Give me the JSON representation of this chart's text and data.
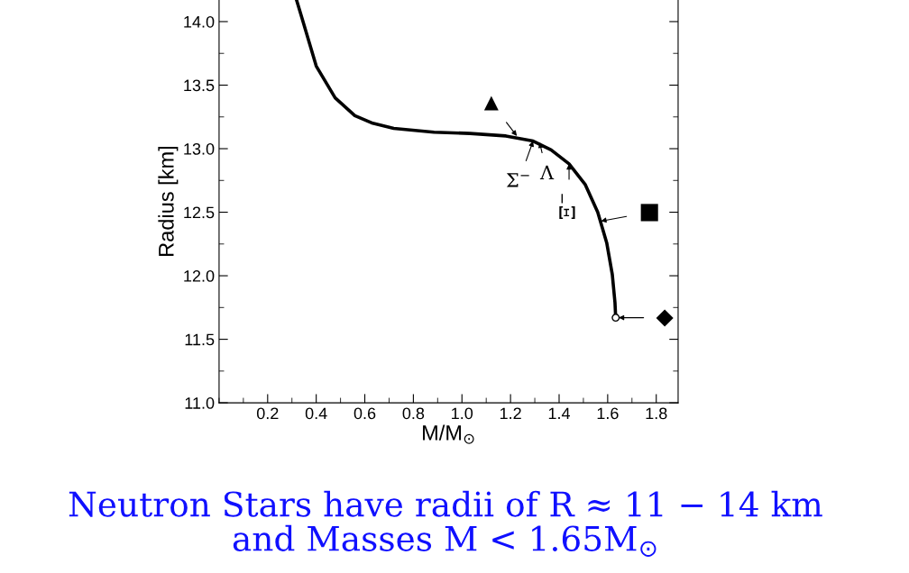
{
  "chart_data": {
    "type": "line",
    "xlabel": "M/M$_{⊙}$",
    "ylabel": "Radius [km]",
    "xlim": [
      0,
      1.89
    ],
    "ylim": [
      11.0,
      14.17
    ],
    "xticks": [
      {
        "value": 0.2,
        "label": "0.2"
      },
      {
        "value": 0.4,
        "label": "0.4"
      },
      {
        "value": 0.6,
        "label": "0.6"
      },
      {
        "value": 0.8,
        "label": "0.8"
      },
      {
        "value": 1.0,
        "label": "1.0"
      },
      {
        "value": 1.2,
        "label": "1.2"
      },
      {
        "value": 1.4,
        "label": "1.4"
      },
      {
        "value": 1.6,
        "label": "1.6"
      },
      {
        "value": 1.8,
        "label": "1.8"
      }
    ],
    "yticks": [
      {
        "value": 11.0,
        "label": "11.0"
      },
      {
        "value": 11.5,
        "label": "11.5"
      },
      {
        "value": 12.0,
        "label": "12.0"
      },
      {
        "value": 12.5,
        "label": "12.5"
      },
      {
        "value": 13.0,
        "label": "13.0"
      },
      {
        "value": 13.5,
        "label": "13.5"
      },
      {
        "value": 14.0,
        "label": "14.0"
      }
    ],
    "grid": false,
    "series": [
      {
        "color": "#000000",
        "marker": "none",
        "line_style": "solid",
        "x": [
          0.319,
          0.341,
          0.4,
          0.478,
          0.559,
          0.633,
          0.719,
          0.885,
          1.033,
          1.181,
          1.293,
          1.367,
          1.441,
          1.507,
          1.559,
          1.596,
          1.619,
          1.63,
          1.633
        ],
        "values": [
          14.17,
          14.03,
          13.65,
          13.4,
          13.26,
          13.2,
          13.16,
          13.13,
          13.12,
          13.1,
          13.06,
          12.99,
          12.88,
          12.72,
          12.5,
          12.26,
          12.01,
          11.79,
          11.67
        ]
      },
      {
        "type": "scatter",
        "color": "#000000",
        "marker": "circle",
        "x": [
          1.633
        ],
        "values": [
          11.67
        ]
      }
    ],
    "annotations": [
      {
        "text": "▲",
        "x": 1.226,
        "y": 13.1
      },
      {
        "text": "Σ$^{−}$",
        "x": 1.293,
        "y": 13.06
      },
      {
        "text": "Λ",
        "x": 1.32,
        "y": 13.05
      },
      {
        "text": "Ξ$^{−}$",
        "x": 1.441,
        "y": 12.88
      },
      {
        "text": "■",
        "x": 1.572,
        "y": 12.43
      },
      {
        "text": "◆",
        "x": 1.645,
        "y": 11.67
      },
      "Neutron Stars have radii of R ≈ 11 − 14 km",
      "and Masses M < 1.65M$_{⊙}$"
    ]
  }
}
